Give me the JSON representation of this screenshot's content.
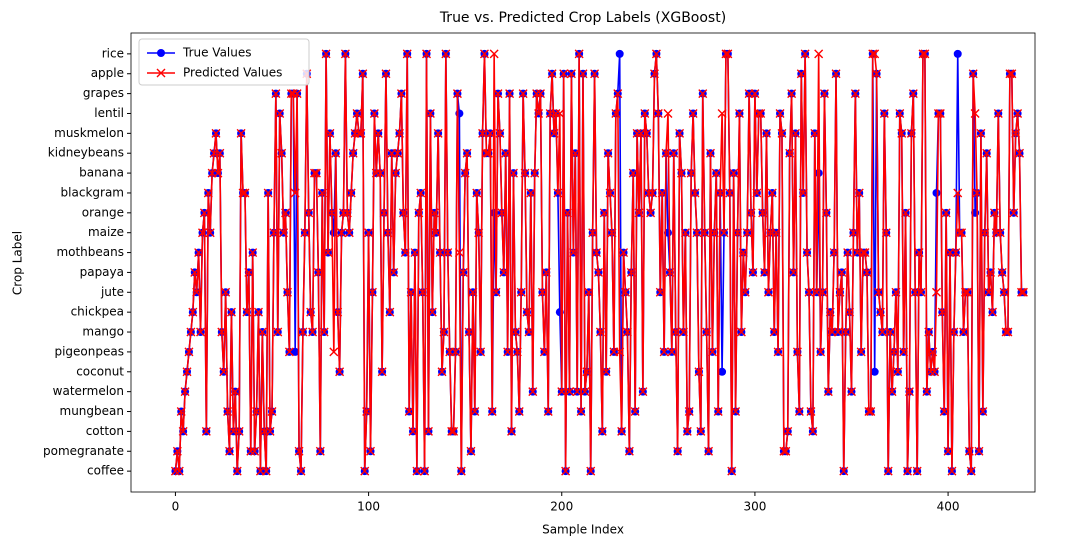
{
  "chart_data": {
    "type": "line",
    "title": "True vs. Predicted Crop Labels (XGBoost)",
    "x_label": "Sample Index",
    "y_label": "Crop Label",
    "xlim": [
      -23,
      445
    ],
    "xticks": [
      0,
      100,
      200,
      300,
      400
    ],
    "ylim": [
      -1.05,
      22.05
    ],
    "yticks": [
      {
        "value": 0,
        "label": "coffee"
      },
      {
        "value": 1,
        "label": "pomegranate"
      },
      {
        "value": 2,
        "label": "cotton"
      },
      {
        "value": 3,
        "label": "mungbean"
      },
      {
        "value": 4,
        "label": "watermelon"
      },
      {
        "value": 5,
        "label": "coconut"
      },
      {
        "value": 6,
        "label": "pigeonpeas"
      },
      {
        "value": 7,
        "label": "mango"
      },
      {
        "value": 8,
        "label": "chickpea"
      },
      {
        "value": 9,
        "label": "jute"
      },
      {
        "value": 10,
        "label": "papaya"
      },
      {
        "value": 11,
        "label": "mothbeans"
      },
      {
        "value": 12,
        "label": "maize"
      },
      {
        "value": 13,
        "label": "orange"
      },
      {
        "value": 14,
        "label": "blackgram"
      },
      {
        "value": 15,
        "label": "banana"
      },
      {
        "value": 16,
        "label": "kidneybeans"
      },
      {
        "value": 17,
        "label": "muskmelon"
      },
      {
        "value": 18,
        "label": "lentil"
      },
      {
        "value": 19,
        "label": "grapes"
      },
      {
        "value": 20,
        "label": "apple"
      },
      {
        "value": 21,
        "label": "rice"
      }
    ],
    "legend": "upper left",
    "x": [
      0,
      1,
      2,
      3,
      4,
      5,
      6,
      7,
      8,
      9,
      10,
      11,
      12,
      13,
      14,
      15,
      16,
      17,
      18,
      19,
      20,
      21,
      22,
      23,
      24,
      25,
      26,
      27,
      28,
      29,
      30,
      31,
      32,
      33,
      34,
      35,
      36,
      37,
      38,
      39,
      40,
      41,
      42,
      43,
      44,
      45,
      46,
      47,
      48,
      49,
      50,
      51,
      52,
      53,
      54,
      55,
      56,
      57,
      58,
      59,
      60,
      61,
      62,
      63,
      64,
      65,
      66,
      67,
      68,
      69,
      70,
      71,
      72,
      73,
      74,
      75,
      76,
      77,
      78,
      79,
      80,
      81,
      82,
      83,
      84,
      85,
      86,
      87,
      88,
      89,
      90,
      91,
      92,
      93,
      94,
      95,
      96,
      97,
      98,
      99,
      100,
      101,
      102,
      103,
      104,
      105,
      106,
      107,
      108,
      109,
      110,
      111,
      112,
      113,
      114,
      115,
      116,
      117,
      118,
      119,
      120,
      121,
      122,
      123,
      124,
      125,
      126,
      127,
      128,
      129,
      130,
      131,
      132,
      133,
      134,
      135,
      136,
      137,
      138,
      139,
      140,
      141,
      142,
      143,
      144,
      145,
      146,
      147,
      148,
      149,
      150,
      151,
      152,
      153,
      154,
      155,
      156,
      157,
      158,
      159,
      160,
      161,
      162,
      163,
      164,
      165,
      166,
      167,
      168,
      169,
      170,
      171,
      172,
      173,
      174,
      175,
      176,
      177,
      178,
      179,
      180,
      181,
      182,
      183,
      184,
      185,
      186,
      187,
      188,
      189,
      190,
      191,
      192,
      193,
      194,
      195,
      196,
      197,
      198,
      199,
      200,
      201,
      202,
      203,
      204,
      205,
      206,
      207,
      208,
      209,
      210,
      211,
      212,
      213,
      214,
      215,
      216,
      217,
      218,
      219,
      220,
      221,
      222,
      223,
      224,
      225,
      226,
      227,
      228,
      229,
      230,
      231,
      232,
      233,
      234,
      235,
      236,
      237,
      238,
      239,
      240,
      241,
      242,
      243,
      244,
      245,
      246,
      247,
      248,
      249,
      250,
      251,
      252,
      253,
      254,
      255,
      256,
      257,
      258,
      259,
      260,
      261,
      262,
      263,
      264,
      265,
      266,
      267,
      268,
      269,
      270,
      271,
      272,
      273,
      274,
      275,
      276,
      277,
      278,
      279,
      280,
      281,
      282,
      283,
      284,
      285,
      286,
      287,
      288,
      289,
      290,
      291,
      292,
      293,
      294,
      295,
      296,
      297,
      298,
      299,
      300,
      301,
      302,
      303,
      304,
      305,
      306,
      307,
      308,
      309,
      310,
      311,
      312,
      313,
      314,
      315,
      316,
      317,
      318,
      319,
      320,
      321,
      322,
      323,
      324,
      325,
      326,
      327,
      328,
      329,
      330,
      331,
      332,
      333,
      334,
      335,
      336,
      337,
      338,
      339,
      340,
      341,
      342,
      343,
      344,
      345,
      346,
      347,
      348,
      349,
      350,
      351,
      352,
      353,
      354,
      355,
      356,
      357,
      358,
      359,
      360,
      361,
      362,
      363,
      364,
      365,
      366,
      367,
      368,
      369,
      370,
      371,
      372,
      373,
      374,
      375,
      376,
      377,
      378,
      379,
      380,
      381,
      382,
      383,
      384,
      385,
      386,
      387,
      388,
      389,
      390,
      391,
      392,
      393,
      394,
      395,
      396,
      397,
      398,
      399,
      400,
      401,
      402,
      403,
      404,
      405,
      406,
      407,
      408,
      409,
      410,
      411,
      412,
      413,
      414,
      415,
      416,
      417,
      418,
      419,
      420,
      421,
      422,
      423,
      424,
      425,
      426,
      427,
      428,
      429,
      430,
      431,
      432,
      433,
      434,
      435,
      436,
      437,
      438,
      439
    ],
    "series": [
      {
        "name": "True Values",
        "color": "#0000ff",
        "marker": "circle",
        "values": [
          0,
          1,
          0,
          3,
          2,
          4,
          5,
          6,
          7,
          8,
          10,
          9,
          11,
          7,
          12,
          13,
          2,
          14,
          12,
          15,
          16,
          17,
          15,
          16,
          7,
          5,
          9,
          3,
          1,
          8,
          2,
          4,
          0,
          2,
          17,
          14,
          14,
          8,
          10,
          1,
          11,
          1,
          3,
          8,
          0,
          7,
          2,
          0,
          14,
          2,
          3,
          12,
          19,
          7,
          18,
          16,
          12,
          13,
          9,
          6,
          19,
          19,
          6,
          19,
          1,
          0,
          7,
          12,
          20,
          13,
          8,
          7,
          15,
          15,
          10,
          1,
          14,
          7,
          21,
          11,
          17,
          13,
          12,
          16,
          8,
          5,
          12,
          13,
          21,
          13,
          12,
          14,
          16,
          17,
          18,
          17,
          17,
          20,
          0,
          3,
          12,
          1,
          9,
          18,
          15,
          17,
          15,
          5,
          13,
          20,
          12,
          8,
          16,
          10,
          15,
          16,
          17,
          19,
          13,
          11,
          21,
          3,
          9,
          2,
          11,
          0,
          13,
          14,
          9,
          0,
          21,
          2,
          18,
          8,
          13,
          12,
          17,
          11,
          5,
          7,
          21,
          11,
          6,
          2,
          2,
          6,
          19,
          18,
          0,
          10,
          15,
          16,
          7,
          1,
          9,
          3,
          14,
          12,
          6,
          17,
          21,
          16,
          16,
          17,
          3,
          13,
          9,
          19,
          17,
          13,
          10,
          16,
          6,
          19,
          2,
          15,
          7,
          6,
          3,
          9,
          19,
          15,
          8,
          7,
          14,
          4,
          15,
          19,
          18,
          19,
          9,
          6,
          10,
          3,
          18,
          20,
          17,
          18,
          14,
          8,
          4,
          20,
          0,
          13,
          4,
          20,
          11,
          16,
          4,
          21,
          3,
          20,
          4,
          5,
          9,
          0,
          12,
          20,
          11,
          10,
          7,
          2,
          13,
          5,
          16,
          14,
          12,
          6,
          18,
          19,
          21,
          2,
          11,
          9,
          7,
          1,
          10,
          15,
          3,
          17,
          13,
          17,
          4,
          18,
          17,
          14,
          13,
          14,
          20,
          21,
          18,
          9,
          14,
          6,
          16,
          12,
          10,
          6,
          16,
          7,
          1,
          17,
          15,
          7,
          12,
          2,
          3,
          15,
          18,
          14,
          12,
          5,
          2,
          19,
          12,
          7,
          1,
          16,
          6,
          12,
          15,
          3,
          14,
          5,
          12,
          21,
          21,
          14,
          0,
          15,
          3,
          12,
          18,
          7,
          11,
          9,
          12,
          19,
          13,
          10,
          19,
          14,
          18,
          18,
          13,
          10,
          17,
          9,
          12,
          14,
          7,
          12,
          6,
          18,
          17,
          1,
          1,
          2,
          16,
          19,
          10,
          17,
          6,
          3,
          20,
          14,
          21,
          11,
          9,
          3,
          2,
          17,
          9,
          15,
          6,
          9,
          19,
          13,
          4,
          8,
          7,
          11,
          20,
          7,
          9,
          10,
          0,
          7,
          11,
          8,
          4,
          12,
          19,
          11,
          14,
          6,
          11,
          11,
          10,
          3,
          3,
          21,
          5,
          20,
          9,
          8,
          7,
          18,
          12,
          0,
          7,
          4,
          6,
          9,
          5,
          18,
          17,
          6,
          13,
          0,
          4,
          17,
          19,
          9,
          0,
          11,
          9,
          21,
          21,
          4,
          7,
          5,
          6,
          5,
          14,
          18,
          18,
          8,
          3,
          13,
          1,
          11,
          0,
          7,
          11,
          21,
          12,
          12,
          7,
          9,
          9,
          1,
          0,
          20,
          13,
          14,
          1,
          17,
          3,
          12,
          16,
          9,
          10,
          8,
          13,
          12,
          18,
          12,
          10,
          9,
          7,
          7,
          20,
          20,
          13,
          17,
          18,
          16,
          9,
          9
        ]
      },
      {
        "name": "Predicted Values",
        "color": "#ff0000",
        "marker": "x",
        "values": [
          0,
          1,
          0,
          3,
          2,
          4,
          5,
          6,
          7,
          8,
          10,
          9,
          11,
          7,
          12,
          13,
          2,
          14,
          12,
          15,
          16,
          17,
          15,
          16,
          7,
          5,
          9,
          3,
          1,
          8,
          2,
          4,
          0,
          2,
          17,
          14,
          14,
          8,
          10,
          1,
          11,
          1,
          3,
          8,
          0,
          7,
          2,
          0,
          14,
          2,
          3,
          12,
          19,
          7,
          18,
          16,
          12,
          13,
          9,
          6,
          19,
          19,
          14,
          19,
          1,
          0,
          7,
          12,
          20,
          13,
          8,
          7,
          15,
          15,
          10,
          1,
          14,
          7,
          21,
          11,
          17,
          13,
          6,
          16,
          8,
          5,
          12,
          13,
          21,
          13,
          12,
          14,
          16,
          17,
          18,
          17,
          17,
          20,
          0,
          3,
          12,
          1,
          9,
          18,
          15,
          17,
          15,
          5,
          13,
          20,
          12,
          8,
          16,
          10,
          15,
          16,
          17,
          19,
          13,
          11,
          21,
          3,
          9,
          2,
          11,
          0,
          13,
          14,
          9,
          0,
          21,
          2,
          18,
          8,
          13,
          12,
          17,
          11,
          5,
          7,
          21,
          11,
          6,
          2,
          2,
          6,
          19,
          11,
          0,
          10,
          15,
          16,
          7,
          1,
          9,
          3,
          14,
          12,
          6,
          17,
          21,
          16,
          16,
          17,
          3,
          21,
          9,
          19,
          17,
          13,
          10,
          16,
          6,
          19,
          2,
          15,
          7,
          6,
          3,
          9,
          19,
          15,
          8,
          7,
          14,
          4,
          15,
          19,
          18,
          19,
          9,
          6,
          10,
          3,
          18,
          20,
          17,
          18,
          14,
          18,
          4,
          20,
          0,
          13,
          4,
          20,
          11,
          16,
          4,
          21,
          3,
          20,
          4,
          5,
          9,
          0,
          12,
          20,
          11,
          10,
          7,
          2,
          13,
          5,
          16,
          14,
          12,
          6,
          18,
          19,
          6,
          2,
          11,
          9,
          7,
          1,
          10,
          15,
          3,
          17,
          13,
          17,
          4,
          18,
          17,
          14,
          13,
          14,
          20,
          21,
          18,
          9,
          14,
          6,
          16,
          18,
          10,
          6,
          16,
          7,
          1,
          17,
          15,
          7,
          12,
          2,
          3,
          15,
          18,
          14,
          12,
          5,
          2,
          19,
          12,
          7,
          1,
          16,
          6,
          12,
          15,
          3,
          14,
          18,
          12,
          21,
          21,
          14,
          0,
          15,
          3,
          12,
          18,
          7,
          11,
          9,
          12,
          19,
          13,
          10,
          19,
          14,
          18,
          18,
          13,
          10,
          17,
          9,
          12,
          14,
          7,
          12,
          6,
          18,
          17,
          1,
          1,
          2,
          16,
          19,
          10,
          17,
          6,
          3,
          20,
          14,
          21,
          11,
          9,
          3,
          2,
          17,
          9,
          21,
          6,
          9,
          19,
          13,
          4,
          8,
          7,
          11,
          20,
          7,
          9,
          10,
          0,
          7,
          11,
          8,
          4,
          12,
          19,
          11,
          14,
          6,
          11,
          11,
          10,
          3,
          3,
          21,
          21,
          20,
          9,
          8,
          7,
          18,
          12,
          0,
          7,
          4,
          6,
          9,
          5,
          18,
          17,
          6,
          13,
          0,
          4,
          17,
          19,
          9,
          0,
          11,
          9,
          21,
          21,
          4,
          7,
          5,
          6,
          5,
          9,
          18,
          18,
          8,
          3,
          13,
          1,
          11,
          0,
          7,
          11,
          14,
          12,
          12,
          7,
          9,
          9,
          1,
          0,
          20,
          18,
          14,
          1,
          17,
          3,
          12,
          16,
          9,
          10,
          8,
          13,
          12,
          18,
          12,
          10,
          9,
          7,
          7,
          20,
          20,
          13,
          17,
          18,
          16,
          9,
          9
        ]
      }
    ]
  }
}
